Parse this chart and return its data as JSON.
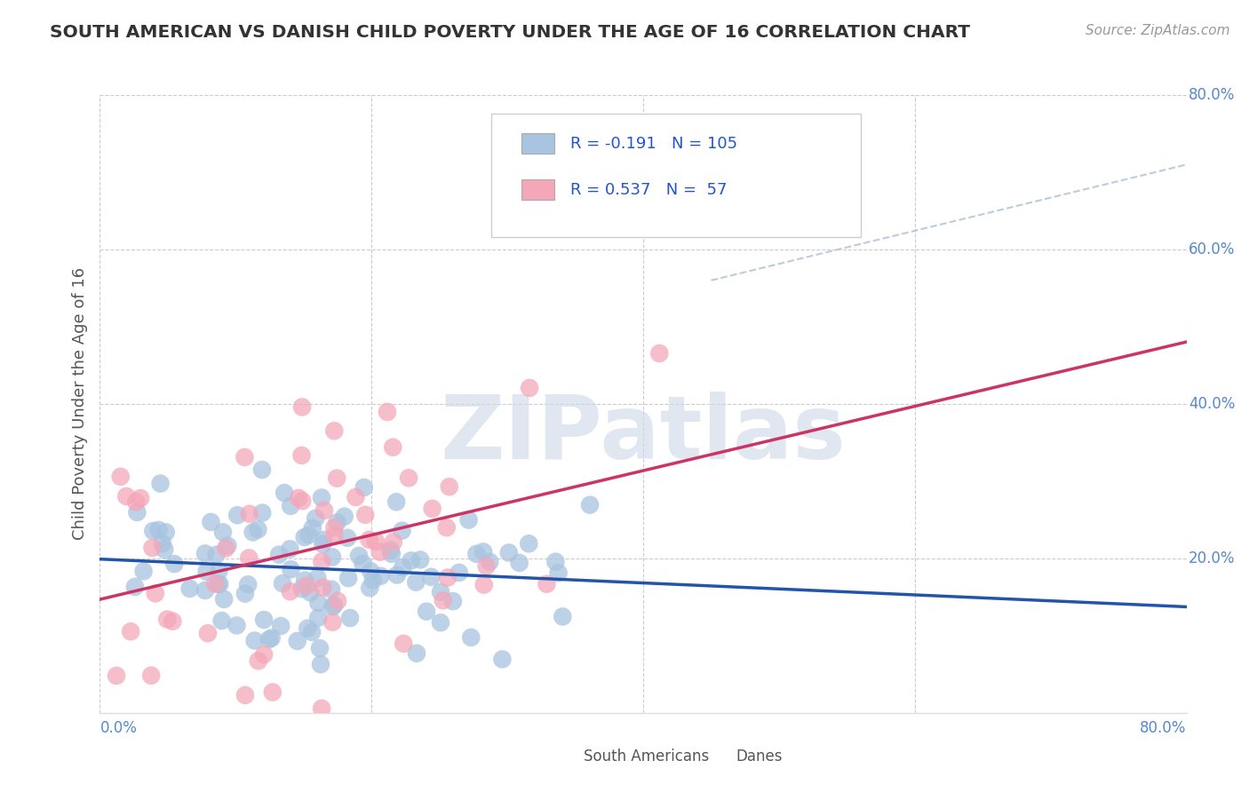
{
  "title": "SOUTH AMERICAN VS DANISH CHILD POVERTY UNDER THE AGE OF 16 CORRELATION CHART",
  "source": "Source: ZipAtlas.com",
  "ylabel": "Child Poverty Under the Age of 16",
  "xlim": [
    0.0,
    0.8
  ],
  "ylim": [
    0.0,
    0.8
  ],
  "xticks": [
    0.0,
    0.2,
    0.4,
    0.6,
    0.8
  ],
  "yticks": [
    0.2,
    0.4,
    0.6,
    0.8
  ],
  "xticklabels_left": "0.0%",
  "xticklabels_right": "80.0%",
  "yticklabels": [
    "20.0%",
    "40.0%",
    "60.0%",
    "80.0%"
  ],
  "south_americans_R": -0.191,
  "south_americans_N": 105,
  "danes_R": 0.537,
  "danes_N": 57,
  "legend_labels": [
    "South Americans",
    "Danes"
  ],
  "scatter_color_sa": "#a8c4e0",
  "scatter_color_danes": "#f4a7b9",
  "line_color_sa": "#2255aa",
  "line_color_danes": "#cc3366",
  "watermark_text": "ZIPatlas",
  "background_color": "#ffffff",
  "grid_color": "#cccccc",
  "title_color": "#333333",
  "axis_label_color": "#555555",
  "tick_color": "#5588cc",
  "legend_box_sa": "#a8c4e0",
  "legend_box_danes": "#f4a7b9",
  "legend_text_color": "#2255cc",
  "dashed_line_color": "#bbccdd"
}
